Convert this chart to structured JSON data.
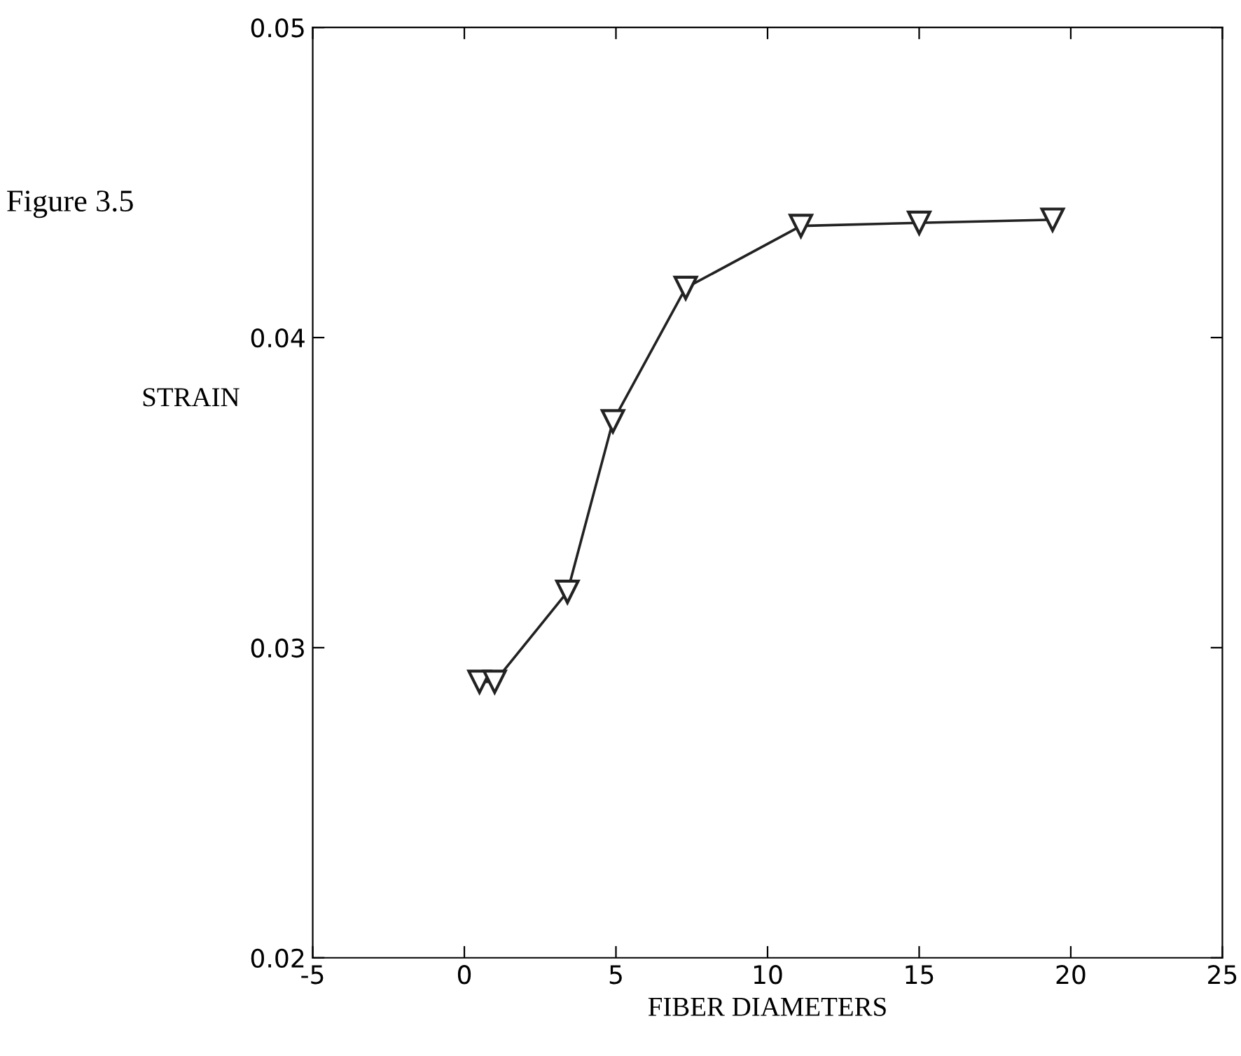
{
  "chart_data": {
    "type": "line",
    "xlabel": "FIBER DIAMETERS",
    "ylabel": "STRAIN",
    "annotations": [
      "Figure 3.5"
    ],
    "series": [
      {
        "color": "#222222",
        "x": [
          0.5,
          1.0,
          3.4,
          4.9,
          7.3,
          11.1,
          15.0,
          19.4
        ],
        "values": [
          0.0289,
          0.0289,
          0.0318,
          0.0373,
          0.0416,
          0.0436,
          0.0437,
          0.0438
        ]
      }
    ],
    "xlim": [
      -5,
      25
    ],
    "xticks": [
      -5,
      0,
      5,
      10,
      15,
      20,
      25
    ],
    "ylim": [
      0.02,
      0.05
    ],
    "yticks": [
      {
        "value": 0.02,
        "label": "0.02"
      },
      {
        "value": 0.03,
        "label": "0.03"
      },
      {
        "value": 0.04,
        "label": "0.04"
      },
      {
        "value": 0.05,
        "label": "0.05"
      }
    ],
    "grid": false,
    "legend": false,
    "marker": "triangle",
    "line_style": "solid"
  }
}
